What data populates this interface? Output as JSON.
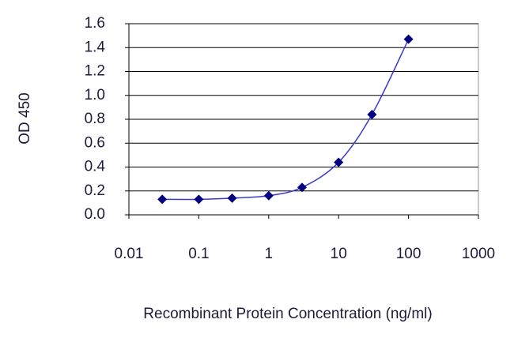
{
  "chart_data": {
    "type": "scatter",
    "x_label": "Recombinant Protein Concentration (ng/ml)",
    "y_label": "OD 450",
    "x": [
      0.03,
      0.1,
      0.3,
      1,
      3,
      10,
      30,
      100
    ],
    "values": [
      0.13,
      0.13,
      0.14,
      0.16,
      0.23,
      0.44,
      0.84,
      1.47
    ],
    "color": "#000080",
    "line_color": "#3a3ad0",
    "x_log": true,
    "xlim": [
      0.01,
      1000
    ],
    "xticks": [
      0.01,
      0.1,
      1,
      10,
      100,
      1000
    ],
    "ylim": [
      0,
      1.6
    ],
    "yticks": [
      {
        "value": 0,
        "label": "0.0"
      },
      0.2,
      0.4,
      0.6,
      0.8,
      {
        "value": 1,
        "label": "1.0"
      },
      1.2,
      1.4,
      1.6
    ],
    "grid": true
  }
}
